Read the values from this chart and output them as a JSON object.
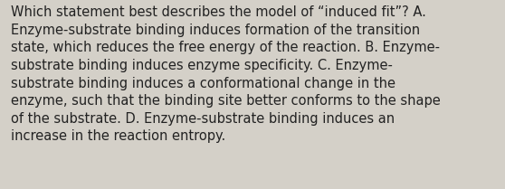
{
  "lines": [
    "Which statement best describes the model of “induced fit”? A.",
    "Enzyme-substrate binding induces formation of the transition",
    "state, which reduces the free energy of the reaction. B. Enzyme-",
    "substrate binding induces enzyme specificity. C. Enzyme-",
    "substrate binding induces a conformational change in the",
    "enzyme, such that the binding site better conforms to the shape",
    "of the substrate. D. Enzyme-substrate binding induces an",
    "increase in the reaction entropy."
  ],
  "background_color": "#d4d0c8",
  "text_color": "#222222",
  "font_size": 10.5,
  "fig_width": 5.58,
  "fig_height": 2.09,
  "dpi": 100
}
